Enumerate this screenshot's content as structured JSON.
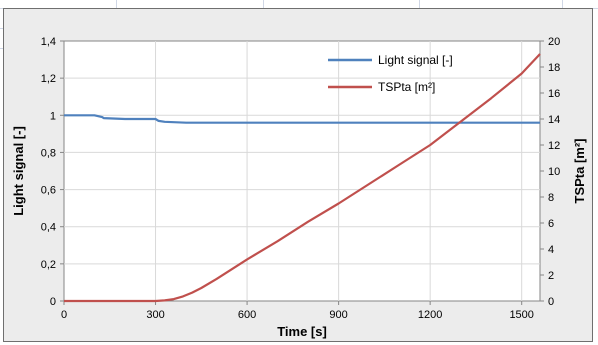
{
  "chart_data": {
    "type": "line",
    "title": "",
    "xlabel": "Time [s]",
    "ylabel": "Light signal [-]",
    "y2label": "TSPta [m²]",
    "xlim": [
      0,
      1560
    ],
    "ylim": [
      0,
      1.4
    ],
    "y2lim": [
      0,
      20
    ],
    "x_ticks": [
      0,
      300,
      600,
      900,
      1200,
      1500
    ],
    "x_tick_labels": [
      "0",
      "300",
      "600",
      "900",
      "1200",
      "1500"
    ],
    "y_ticks": [
      0,
      0.2,
      0.4,
      0.6,
      0.8,
      1.0,
      1.2,
      1.4
    ],
    "y_tick_labels": [
      "0",
      "0,2",
      "0,4",
      "0,6",
      "0,8",
      "1",
      "1,2",
      "1,4"
    ],
    "y2_ticks": [
      0,
      2,
      4,
      6,
      8,
      10,
      12,
      14,
      16,
      18,
      20
    ],
    "y2_tick_labels": [
      "0",
      "2",
      "4",
      "6",
      "8",
      "10",
      "12",
      "14",
      "16",
      "18",
      "20"
    ],
    "grid": true,
    "legend_position": "top-right",
    "series": [
      {
        "name": "Light signal [-]",
        "axis": "left",
        "color": "#4f81bd",
        "x": [
          0,
          100,
          125,
          130,
          200,
          300,
          310,
          330,
          400,
          600,
          900,
          1200,
          1560
        ],
        "y": [
          1.0,
          1.0,
          0.99,
          0.985,
          0.98,
          0.98,
          0.97,
          0.965,
          0.96,
          0.96,
          0.96,
          0.96,
          0.96
        ]
      },
      {
        "name": "TSPta [m²]",
        "axis": "right",
        "color": "#c0504d",
        "x": [
          0,
          300,
          330,
          360,
          390,
          420,
          450,
          500,
          600,
          700,
          800,
          900,
          1000,
          1100,
          1200,
          1300,
          1400,
          1500,
          1560
        ],
        "y": [
          0,
          0,
          0.05,
          0.15,
          0.35,
          0.65,
          1.0,
          1.7,
          3.2,
          4.6,
          6.1,
          7.5,
          9.0,
          10.5,
          12.0,
          13.8,
          15.6,
          17.5,
          19.0
        ]
      }
    ]
  }
}
